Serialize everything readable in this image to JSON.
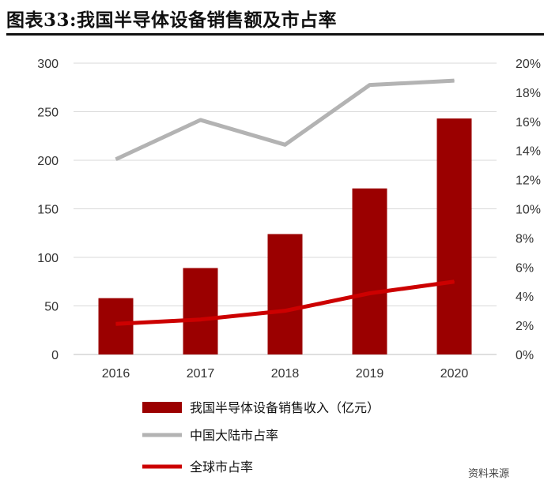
{
  "page": {
    "title": "图表33:我国半导体设备销售额及市占率",
    "watermark": "资料来源"
  },
  "chart_data": {
    "type": "bar",
    "categories": [
      "2016",
      "2017",
      "2018",
      "2019",
      "2020"
    ],
    "left_axis": {
      "ylim": [
        0,
        300
      ],
      "ticks": [
        "0",
        "50",
        "100",
        "150",
        "200",
        "250",
        "300"
      ]
    },
    "right_axis": {
      "ylim": [
        0,
        20
      ],
      "ticks": [
        "0%",
        "2%",
        "4%",
        "6%",
        "8%",
        "10%",
        "12%",
        "14%",
        "16%",
        "18%",
        "20%"
      ]
    },
    "grid": true,
    "legend_position": "bottom",
    "series": [
      {
        "name": "我国半导体设备销售收入（亿元）",
        "type": "bar",
        "axis": "left",
        "color": "#9b0000",
        "values": [
          58,
          89,
          124,
          171,
          243
        ]
      },
      {
        "name": "中国大陆市占率",
        "type": "line",
        "axis": "right",
        "color": "#b3b3b3",
        "values": [
          13.4,
          16.1,
          14.4,
          18.5,
          18.8
        ]
      },
      {
        "name": "全球市占率",
        "type": "line",
        "axis": "right",
        "color": "#cc0000",
        "values": [
          2.1,
          2.4,
          3.0,
          4.2,
          5.0
        ]
      }
    ]
  }
}
